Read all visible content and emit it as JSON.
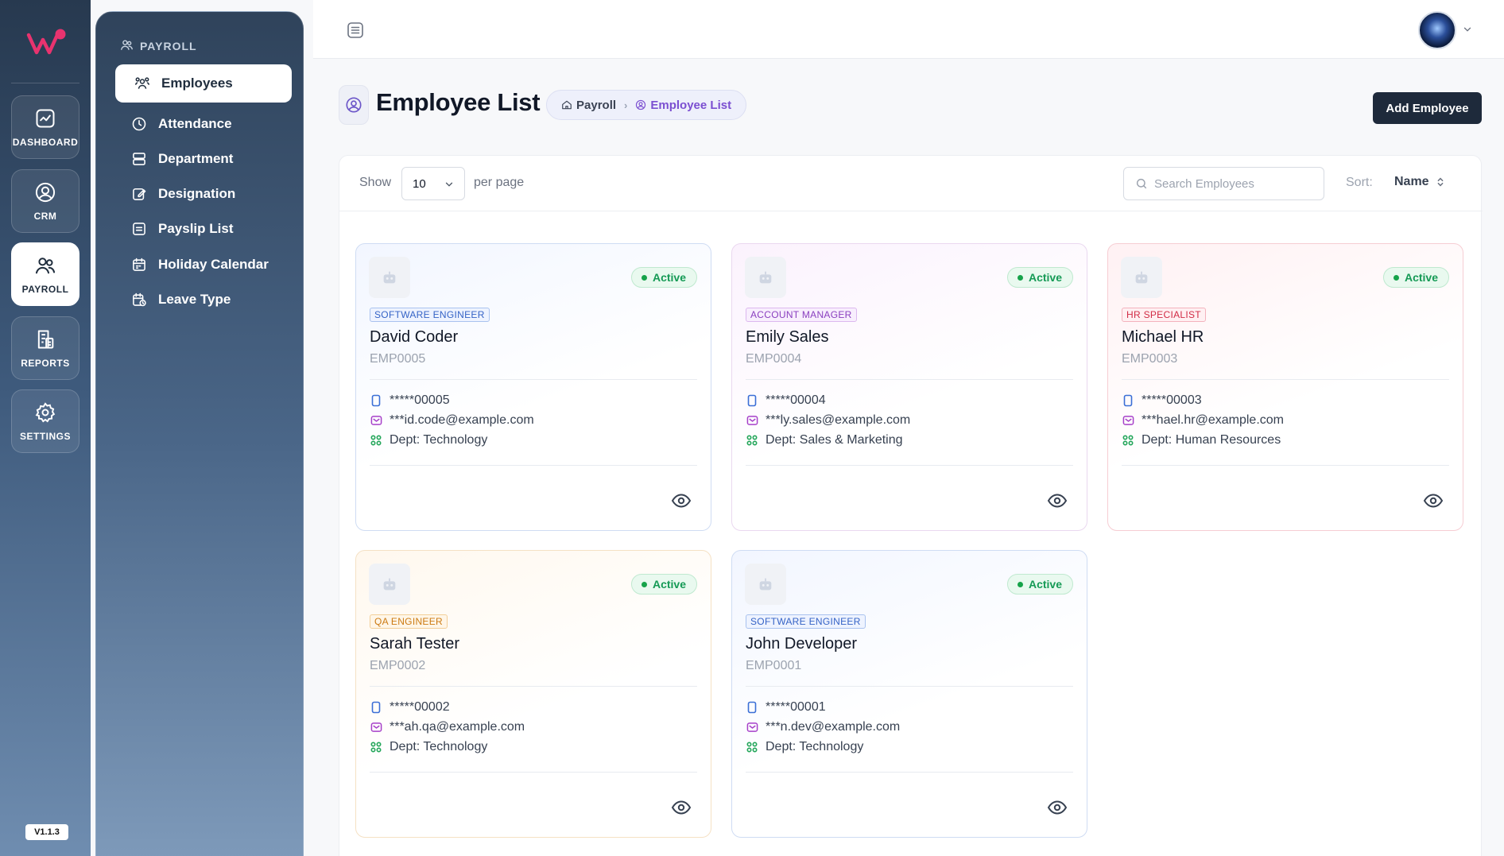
{
  "rail": {
    "items": [
      {
        "label": "DASHBOARD",
        "icon": "dashboard-icon"
      },
      {
        "label": "CRM",
        "icon": "user-circle-icon"
      },
      {
        "label": "PAYROLL",
        "icon": "users-icon",
        "active": true
      },
      {
        "label": "REPORTS",
        "icon": "reports-icon"
      },
      {
        "label": "SETTINGS",
        "icon": "gear-icon"
      }
    ],
    "version": "V1.1.3"
  },
  "submenu": {
    "heading": "PAYROLL",
    "items": [
      {
        "label": "Employees",
        "active": true
      },
      {
        "label": "Attendance"
      },
      {
        "label": "Department"
      },
      {
        "label": "Designation"
      },
      {
        "label": "Payslip List"
      },
      {
        "label": "Holiday Calendar"
      },
      {
        "label": "Leave Type"
      }
    ]
  },
  "header": {
    "title": "Employee List",
    "breadcrumb": [
      "Payroll",
      "Employee List"
    ],
    "add_button": "Add Employee"
  },
  "toolbar": {
    "show_label": "Show",
    "per_page_value": "10",
    "per_page_label": "per page",
    "search_placeholder": "Search Employees",
    "sort_label": "Sort:",
    "sort_value": "Name"
  },
  "employees": [
    {
      "role": "SOFTWARE ENGINEER",
      "name": "David Coder",
      "code": "EMP0005",
      "phone": "*****00005",
      "email": "***id.code@example.com",
      "dept": "Dept: Technology",
      "status": "Active",
      "theme": "blue"
    },
    {
      "role": "ACCOUNT MANAGER",
      "name": "Emily Sales",
      "code": "EMP0004",
      "phone": "*****00004",
      "email": "***ly.sales@example.com",
      "dept": "Dept: Sales & Marketing",
      "status": "Active",
      "theme": "pink"
    },
    {
      "role": "HR SPECIALIST",
      "name": "Michael HR",
      "code": "EMP0003",
      "phone": "*****00003",
      "email": "***hael.hr@example.com",
      "dept": "Dept: Human Resources",
      "status": "Active",
      "theme": "red"
    },
    {
      "role": "QA ENGINEER",
      "name": "Sarah Tester",
      "code": "EMP0002",
      "phone": "*****00002",
      "email": "***ah.qa@example.com",
      "dept": "Dept: Technology",
      "status": "Active",
      "theme": "orange"
    },
    {
      "role": "SOFTWARE ENGINEER",
      "name": "John Developer",
      "code": "EMP0001",
      "phone": "*****00001",
      "email": "***n.dev@example.com",
      "dept": "Dept: Technology",
      "status": "Active",
      "theme": "blue"
    }
  ],
  "colors": {
    "brand": "#e8336f",
    "primary_button": "#1e2a3b",
    "status_active": "#16a34a",
    "breadcrumb_current": "#7b4fd1"
  }
}
